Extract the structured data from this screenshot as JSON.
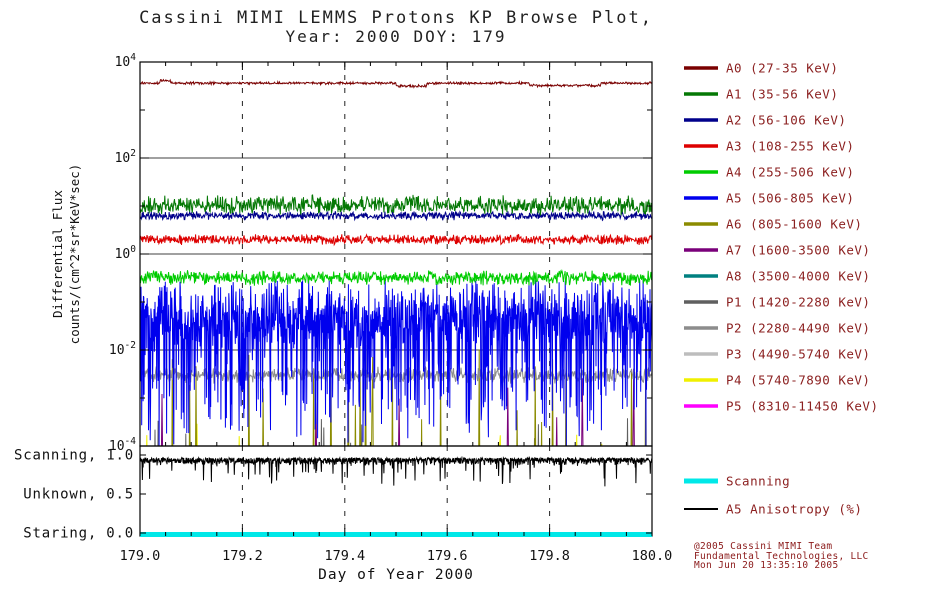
{
  "title": {
    "line1": "Cassini MIMI LEMMS Protons KP Browse Plot,",
    "line2": "Year: 2000 DOY: 179"
  },
  "axes": {
    "y_label_line1": "Differential Flux",
    "y_label_line2": "counts/(cm^2*sr*KeV*sec)",
    "x_label": "Day of Year 2000",
    "x_ticks": [
      "179.0",
      "179.2",
      "179.4",
      "179.6",
      "179.8",
      "180.0"
    ],
    "y_ticks": [
      {
        "log10": 4,
        "base": "10",
        "exp": "4"
      },
      {
        "log10": 2,
        "base": "10",
        "exp": "2"
      },
      {
        "log10": 0,
        "base": "10",
        "exp": "0"
      },
      {
        "log10": -2,
        "base": "10",
        "exp": "-2"
      },
      {
        "log10": -4,
        "base": "10",
        "exp": "-4"
      }
    ]
  },
  "mode_axis": {
    "labels": [
      {
        "text": "Scanning, 1.0",
        "value": 1.0
      },
      {
        "text": "Unknown, 0.5",
        "value": 0.5
      },
      {
        "text": "Staring, 0.0",
        "value": 0.0
      }
    ]
  },
  "credit": {
    "line1": "@2005 Cassini MIMI Team",
    "line2": "Fundamental Technologies, LLC",
    "line3": "Mon Jun 20 13:35:10 2005"
  },
  "colors": {
    "background": "#ffffff",
    "axis": "#000000",
    "legend_text": "#8b1f1f",
    "credit_text": "#8b1a1a"
  },
  "chart_data": {
    "type": "line",
    "title": "Cassini MIMI LEMMS Protons KP Browse Plot, Year: 2000 DOY: 179",
    "xlabel": "Day of Year 2000",
    "ylabel": "Differential Flux counts/(cm^2*sr*KeV*sec)",
    "x_range": [
      179.0,
      180.0
    ],
    "y_scale": "log10",
    "y_range": [
      0.0001,
      10000
    ],
    "grid": {
      "vertical_dashed_at": [
        179.2,
        179.4,
        179.6,
        179.8
      ],
      "horizontal_solid_at_log10": [
        2,
        0,
        -2
      ]
    },
    "series": [
      {
        "name": "A0 (27-35 KeV)",
        "color": "#7a0000",
        "mean_log10": 3.56,
        "noise": 0.018,
        "points": 900,
        "z": 14,
        "steps": [
          {
            "from": 179.04,
            "to": 179.06,
            "delta": 0.05
          },
          {
            "from": 179.5,
            "to": 179.56,
            "delta": -0.06
          },
          {
            "from": 179.76,
            "to": 179.9,
            "delta": -0.05
          }
        ]
      },
      {
        "name": "A1 (35-56 KeV)",
        "color": "#057805",
        "mean_log10": 1.02,
        "noise": 0.13,
        "points": 950,
        "z": 13
      },
      {
        "name": "A2 (56-106 KeV)",
        "color": "#00008b",
        "mean_log10": 0.8,
        "noise": 0.06,
        "points": 950,
        "z": 12
      },
      {
        "name": "A3 (108-255 KeV)",
        "color": "#dd0000",
        "mean_log10": 0.3,
        "noise": 0.07,
        "points": 950,
        "z": 11
      },
      {
        "name": "A4 (255-506 KeV)",
        "color": "#00cc00",
        "mean_log10": -0.5,
        "noise": 0.1,
        "points": 950,
        "z": 10
      },
      {
        "name": "A5 (506-805 KeV)",
        "color": "#0000ee",
        "mean_log10": -1.25,
        "noise": 0.45,
        "dip_prob": 0.3,
        "dip_depth": 2.4,
        "points": 1500,
        "z": 9
      },
      {
        "name": "A6 (805-1600 KeV)",
        "color": "#8b8b00",
        "baseline_log10": -5.3,
        "spike_prob": 0.035,
        "spike_min": -3.7,
        "spike_max": -1.8,
        "points": 650,
        "z": 5
      },
      {
        "name": "A7 (1600-3500 KeV)",
        "color": "#7a007a",
        "baseline_log10": -5.3,
        "spike_prob": 0.01,
        "spike_min": -3.5,
        "spike_max": -2.3,
        "points": 420,
        "z": 6
      },
      {
        "name": "A8 (3500-4000 KeV)",
        "color": "#008080",
        "baseline_log10": -5.3,
        "points": 100,
        "z": 1
      },
      {
        "name": "P1 (1420-2280 KeV)",
        "color": "#5f5f5f",
        "baseline_log10": -5.3,
        "spike_prob": 0.03,
        "spike_min": -4.4,
        "spike_max": -3.4,
        "points": 650,
        "z": 4
      },
      {
        "name": "P2 (2280-4490 KeV)",
        "color": "#8c8c8c",
        "mean_log10": -2.52,
        "noise": 0.11,
        "points": 950,
        "z": 8
      },
      {
        "name": "P3 (4490-5740 KeV)",
        "color": "#bdbdbd",
        "baseline_log10": -5.3,
        "points": 100,
        "z": 1
      },
      {
        "name": "P4 (5740-7890 KeV)",
        "color": "#f0f000",
        "baseline_log10": -5.3,
        "spike_prob": 0.013,
        "spike_min": -4.3,
        "spike_max": -3.5,
        "points": 450,
        "z": 3
      },
      {
        "name": "P5 (8310-11450 KeV)",
        "color": "#ff00ff",
        "baseline_log10": -5.3,
        "points": 100,
        "z": 1
      }
    ],
    "anisotropy_panel": {
      "y_range": [
        0,
        1
      ],
      "black_trace": {
        "name": "A5 Anisotropy (%)",
        "color": "#000000",
        "base": 0.965,
        "noise": 0.1,
        "dip_prob": 0.06,
        "dip_depth": 0.3,
        "points": 1500
      },
      "scanning_line": {
        "name": "Scanning",
        "color": "#00e8e8",
        "value": 0.0
      },
      "legend": [
        {
          "label": "Scanning",
          "color": "#00e8e8",
          "width": 5
        },
        {
          "label": "A5 Anisotropy (%)",
          "color": "#000000",
          "width": 2
        }
      ]
    }
  }
}
